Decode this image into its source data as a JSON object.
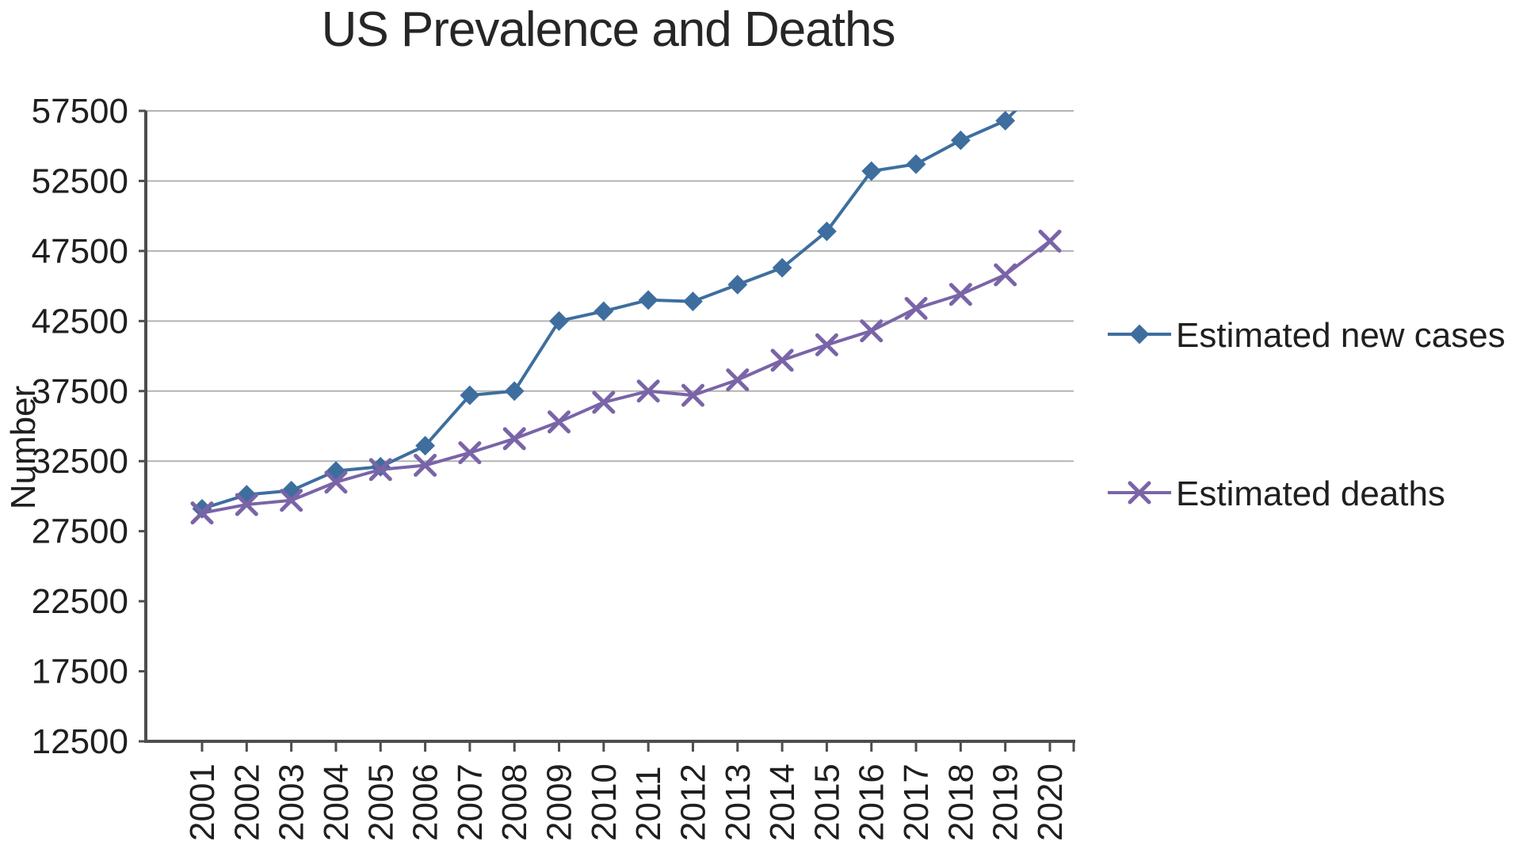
{
  "page": {
    "background": "#ffffff"
  },
  "chart_data": {
    "type": "line",
    "title": "US Prevalence and Deaths",
    "ylabel": "Number",
    "xlabel": "",
    "categories": [
      "2001",
      "2002",
      "2003",
      "2004",
      "2005",
      "2006",
      "2007",
      "2008",
      "2009",
      "2010",
      "2011",
      "2012",
      "2013",
      "2014",
      "2015",
      "2016",
      "2017",
      "2018",
      "2019",
      "2020"
    ],
    "ylim": [
      12500,
      57500
    ],
    "ytick_step": 5000,
    "ytick_labels": [
      "57500",
      "52500",
      "47500",
      "42500",
      "37500",
      "32500",
      "27500",
      "22500",
      "17500",
      "12500"
    ],
    "gridline_values": [
      57500,
      52500,
      47500,
      42500,
      37500,
      32500
    ],
    "grid_color": "#b3b3b3",
    "axis_color": "#4d4d4d",
    "legend": {
      "position": "right"
    },
    "series": [
      {
        "name": "Estimated new cases",
        "marker": "diamond",
        "color": "#3e6e9e",
        "values": [
          29100,
          30100,
          30400,
          31800,
          32100,
          33600,
          37200,
          37500,
          42500,
          43200,
          44000,
          43900,
          45100,
          46300,
          48900,
          53200,
          53700,
          55400,
          56800,
          null
        ],
        "line_exits_top_after_last_point": true
      },
      {
        "name": "Estimated deaths",
        "marker": "x",
        "color": "#7a64a8",
        "values": [
          28800,
          29400,
          29700,
          31000,
          31900,
          32200,
          33100,
          34100,
          35300,
          36700,
          37500,
          37200,
          38300,
          39700,
          40800,
          41800,
          43400,
          44400,
          45800,
          48200
        ],
        "line_exits_top_after_last_point": false
      }
    ]
  }
}
